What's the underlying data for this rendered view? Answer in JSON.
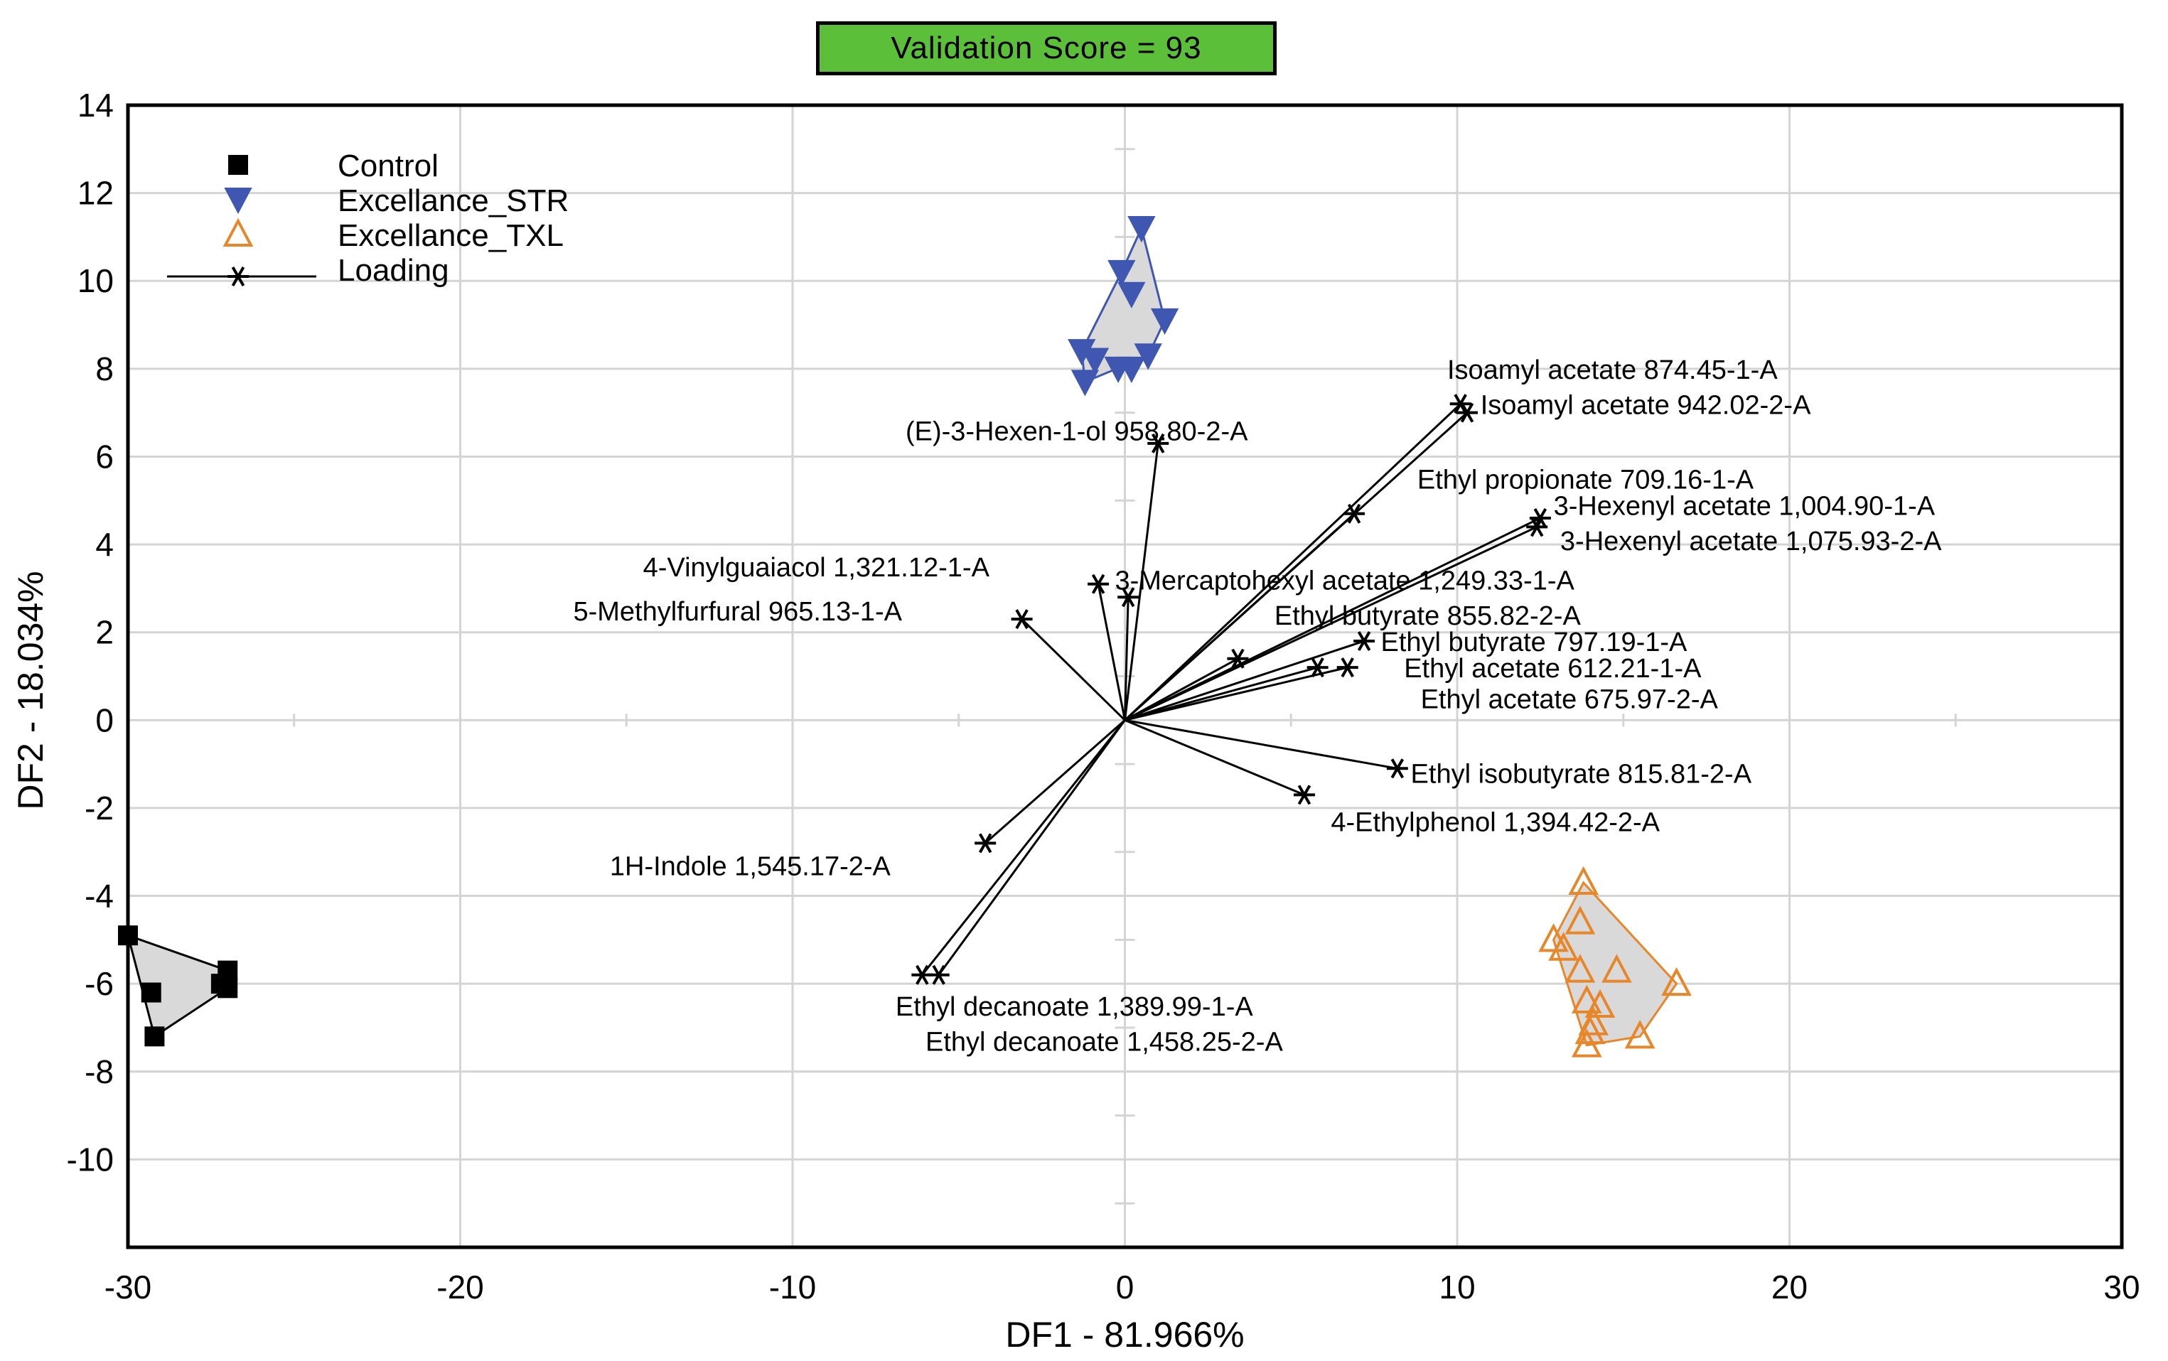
{
  "header": {
    "validation_score": "Validation Score = 93"
  },
  "colors": {
    "control": "#000000",
    "str": "#3f57b0",
    "txl": "#e8862a",
    "hull_fill": "#d9d9d9",
    "grid": "#d4d4d4"
  },
  "chart_data": {
    "type": "scatter",
    "title": "",
    "xlabel": "DF1 - 81.966%",
    "ylabel": "DF2 - 18.034%",
    "xlim": [
      -30,
      30
    ],
    "ylim": [
      -12,
      14
    ],
    "xticks": [
      -30,
      -20,
      -10,
      0,
      10,
      20,
      30
    ],
    "yticks": [
      -10,
      -8,
      -6,
      -4,
      -2,
      0,
      2,
      4,
      6,
      8,
      10,
      12,
      14
    ],
    "grid": true,
    "legend_position": "top-left",
    "legend": [
      {
        "key": "control",
        "label": "Control"
      },
      {
        "key": "str",
        "label": "Excellance_STR"
      },
      {
        "key": "txl",
        "label": "Excellance_TXL"
      },
      {
        "key": "loading",
        "label": "Loading"
      }
    ],
    "series": [
      {
        "name": "Control",
        "marker": "square",
        "points": [
          [
            -30.0,
            -4.9
          ],
          [
            -29.3,
            -6.2
          ],
          [
            -29.2,
            -7.2
          ],
          [
            -27.0,
            -5.7
          ],
          [
            -27.0,
            -6.1
          ],
          [
            -27.2,
            -6.0
          ]
        ],
        "hull": [
          [
            -30.0,
            -4.9
          ],
          [
            -27.0,
            -5.7
          ],
          [
            -27.0,
            -6.1
          ],
          [
            -29.2,
            -7.2
          ]
        ]
      },
      {
        "name": "Excellance_STR",
        "marker": "triangle-down",
        "points": [
          [
            0.5,
            11.2
          ],
          [
            -0.1,
            10.2
          ],
          [
            0.2,
            9.7
          ],
          [
            1.2,
            9.1
          ],
          [
            -1.3,
            8.4
          ],
          [
            -0.9,
            8.2
          ],
          [
            -0.2,
            8.0
          ],
          [
            0.2,
            8.0
          ],
          [
            0.7,
            8.3
          ],
          [
            -1.2,
            7.7
          ]
        ],
        "hull": [
          [
            0.5,
            11.2
          ],
          [
            1.2,
            9.1
          ],
          [
            0.7,
            8.3
          ],
          [
            -1.2,
            7.7
          ],
          [
            -1.3,
            8.4
          ],
          [
            -0.1,
            10.2
          ]
        ]
      },
      {
        "name": "Excellance_TXL",
        "marker": "triangle-up",
        "points": [
          [
            13.8,
            -3.7
          ],
          [
            13.7,
            -4.6
          ],
          [
            12.9,
            -5.0
          ],
          [
            13.2,
            -5.2
          ],
          [
            13.7,
            -5.7
          ],
          [
            14.8,
            -5.7
          ],
          [
            16.6,
            -6.0
          ],
          [
            13.9,
            -6.4
          ],
          [
            14.3,
            -6.5
          ],
          [
            14.1,
            -6.9
          ],
          [
            14.0,
            -7.1
          ],
          [
            15.5,
            -7.2
          ],
          [
            13.9,
            -7.4
          ]
        ],
        "hull": [
          [
            13.8,
            -3.7
          ],
          [
            16.6,
            -6.0
          ],
          [
            15.5,
            -7.2
          ],
          [
            13.9,
            -7.4
          ],
          [
            12.9,
            -5.0
          ]
        ]
      }
    ],
    "loadings": [
      {
        "label": "Isoamyl acetate 874.45-1-A",
        "x": 10.1,
        "y": 7.2,
        "lx": 9.7,
        "ly": 8.0,
        "anchor": "start"
      },
      {
        "label": "Isoamyl acetate 942.02-2-A",
        "x": 10.3,
        "y": 7.0,
        "lx": 10.7,
        "ly": 7.2,
        "anchor": "start"
      },
      {
        "label": "(E)-3-Hexen-1-ol 958.80-2-A",
        "x": 1.0,
        "y": 6.3,
        "lx": -6.6,
        "ly": 6.6,
        "anchor": "start"
      },
      {
        "label": "Ethyl propionate 709.16-1-A",
        "x": 6.9,
        "y": 4.7,
        "lx": 8.8,
        "ly": 5.5,
        "anchor": "start"
      },
      {
        "label": "3-Hexenyl acetate 1,004.90-1-A",
        "x": 12.5,
        "y": 4.6,
        "lx": 12.9,
        "ly": 4.9,
        "anchor": "start"
      },
      {
        "label": "3-Hexenyl acetate 1,075.93-2-A",
        "x": 12.4,
        "y": 4.4,
        "lx": 13.1,
        "ly": 4.1,
        "anchor": "start"
      },
      {
        "label": "4-Vinylguaiacol 1,321.12-1-A",
        "x": -0.8,
        "y": 3.1,
        "lx": -14.5,
        "ly": 3.5,
        "anchor": "start"
      },
      {
        "label": "3-Mercaptohexyl acetate 1,249.33-1-A",
        "x": 0.1,
        "y": 2.8,
        "lx": -0.3,
        "ly": 3.2,
        "anchor": "start"
      },
      {
        "label": "5-Methylfurfural 965.13-1-A",
        "x": -3.1,
        "y": 2.3,
        "lx": -16.6,
        "ly": 2.5,
        "anchor": "start"
      },
      {
        "label": "Ethyl butyrate 855.82-2-A",
        "x": 3.4,
        "y": 1.4,
        "lx": 4.5,
        "ly": 2.4,
        "anchor": "start"
      },
      {
        "label": "Ethyl butyrate 797.19-1-A",
        "x": 7.2,
        "y": 1.8,
        "lx": 7.7,
        "ly": 1.8,
        "anchor": "start"
      },
      {
        "label": "Ethyl acetate 612.21-1-A",
        "x": 5.8,
        "y": 1.2,
        "lx": 8.4,
        "ly": 1.2,
        "anchor": "start"
      },
      {
        "label": "Ethyl acetate 675.97-2-A",
        "x": 6.7,
        "y": 1.2,
        "lx": 8.9,
        "ly": 0.5,
        "anchor": "start"
      },
      {
        "label": "Ethyl isobutyrate 815.81-2-A",
        "x": 8.2,
        "y": -1.1,
        "lx": 8.6,
        "ly": -1.2,
        "anchor": "start"
      },
      {
        "label": "4-Ethylphenol 1,394.42-2-A",
        "x": 5.4,
        "y": -1.7,
        "lx": 6.2,
        "ly": -2.3,
        "anchor": "start"
      },
      {
        "label": "1H-Indole 1,545.17-2-A",
        "x": -4.2,
        "y": -2.8,
        "lx": -15.5,
        "ly": -3.3,
        "anchor": "start"
      },
      {
        "label": "Ethyl decanoate 1,389.99-1-A",
        "x": -6.1,
        "y": -5.8,
        "lx": -6.9,
        "ly": -6.5,
        "anchor": "start"
      },
      {
        "label": "Ethyl decanoate 1,458.25-2-A",
        "x": -5.6,
        "y": -5.8,
        "lx": -6.0,
        "ly": -7.3,
        "anchor": "start"
      }
    ]
  }
}
